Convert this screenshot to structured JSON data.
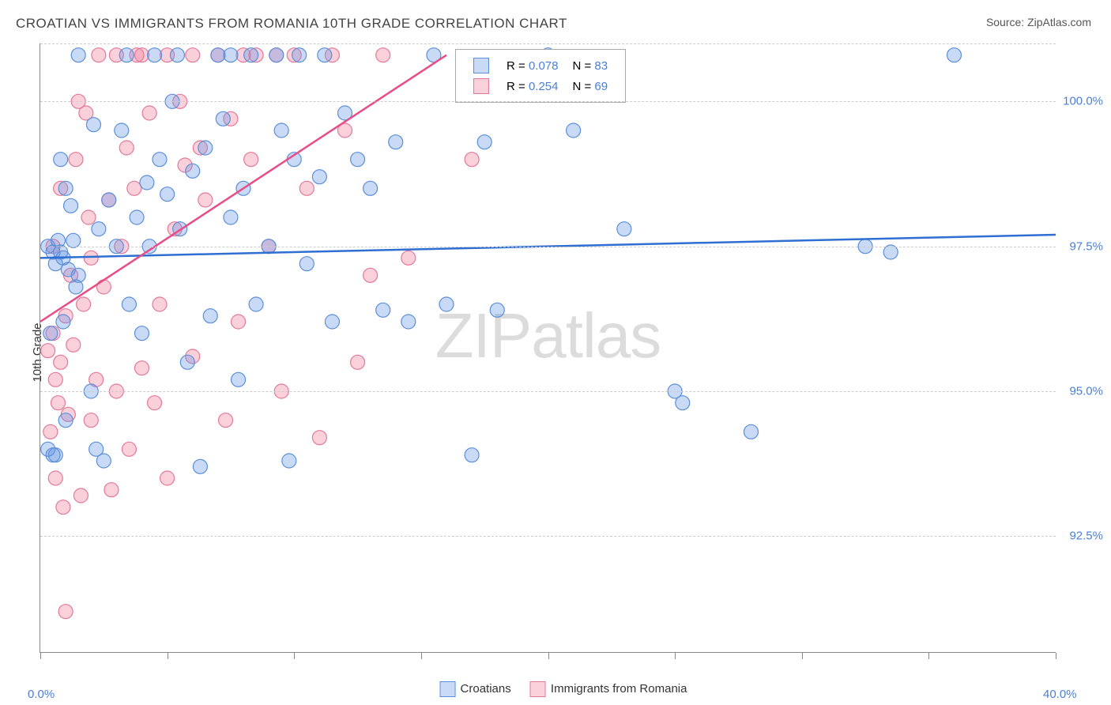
{
  "title": "CROATIAN VS IMMIGRANTS FROM ROMANIA 10TH GRADE CORRELATION CHART",
  "source": "Source: ZipAtlas.com",
  "ylabel": "10th Grade",
  "watermark_a": "ZIP",
  "watermark_b": "atlas",
  "chart": {
    "type": "scatter",
    "xlim": [
      0,
      40
    ],
    "ylim": [
      90.5,
      101
    ],
    "x_ticks_marks": [
      0,
      5,
      10,
      15,
      20,
      25,
      30,
      35,
      40
    ],
    "x_ticks_labels": [
      {
        "v": 0,
        "label": "0.0%"
      },
      {
        "v": 40,
        "label": "40.0%"
      }
    ],
    "y_ticks": [
      {
        "v": 92.5,
        "label": "92.5%"
      },
      {
        "v": 95.0,
        "label": "95.0%"
      },
      {
        "v": 97.5,
        "label": "97.5%"
      },
      {
        "v": 100.0,
        "label": "100.0%"
      }
    ],
    "grid_y": [
      92.5,
      95.0,
      97.5,
      100.0,
      101
    ],
    "grid_color": "#d5d5d5",
    "background": "#ffffff",
    "marker_radius": 9,
    "marker_stroke_width": 1.2,
    "trend_line_width": 2.5,
    "series": [
      {
        "name": "Croatians",
        "fill": "rgba(100,150,230,0.35)",
        "stroke": "#5b8fd8",
        "line_color": "#2e6fd1",
        "R": "0.078",
        "N": "83",
        "trend": {
          "x1": 0,
          "y1": 97.3,
          "x2": 40,
          "y2": 97.7
        },
        "points": [
          [
            0.3,
            97.5
          ],
          [
            0.4,
            96.0
          ],
          [
            0.5,
            97.4
          ],
          [
            0.6,
            93.9
          ],
          [
            0.6,
            97.2
          ],
          [
            0.7,
            97.6
          ],
          [
            0.8,
            97.4
          ],
          [
            0.8,
            99.0
          ],
          [
            0.9,
            96.2
          ],
          [
            0.9,
            97.3
          ],
          [
            1.0,
            98.5
          ],
          [
            1.0,
            94.5
          ],
          [
            1.1,
            97.1
          ],
          [
            1.2,
            98.2
          ],
          [
            1.3,
            97.6
          ],
          [
            1.4,
            96.8
          ],
          [
            1.5,
            97.0
          ],
          [
            1.5,
            100.8
          ],
          [
            2.0,
            95.0
          ],
          [
            2.1,
            99.6
          ],
          [
            2.2,
            94.0
          ],
          [
            2.3,
            97.8
          ],
          [
            2.5,
            93.8
          ],
          [
            2.7,
            98.3
          ],
          [
            3.0,
            97.5
          ],
          [
            3.2,
            99.5
          ],
          [
            3.4,
            100.8
          ],
          [
            3.5,
            96.5
          ],
          [
            3.8,
            98.0
          ],
          [
            4.0,
            96.0
          ],
          [
            4.2,
            98.6
          ],
          [
            4.3,
            97.5
          ],
          [
            4.5,
            100.8
          ],
          [
            4.7,
            99.0
          ],
          [
            5.0,
            98.4
          ],
          [
            5.2,
            100.0
          ],
          [
            5.4,
            100.8
          ],
          [
            5.5,
            97.8
          ],
          [
            5.8,
            95.5
          ],
          [
            6.0,
            98.8
          ],
          [
            6.3,
            93.7
          ],
          [
            6.5,
            99.2
          ],
          [
            6.7,
            96.3
          ],
          [
            7.0,
            100.8
          ],
          [
            7.2,
            99.7
          ],
          [
            7.5,
            98.0
          ],
          [
            7.5,
            100.8
          ],
          [
            7.8,
            95.2
          ],
          [
            8.0,
            98.5
          ],
          [
            8.3,
            100.8
          ],
          [
            8.5,
            96.5
          ],
          [
            9.0,
            97.5
          ],
          [
            9.3,
            100.8
          ],
          [
            9.5,
            99.5
          ],
          [
            9.8,
            93.8
          ],
          [
            10.0,
            99.0
          ],
          [
            10.2,
            100.8
          ],
          [
            10.5,
            97.2
          ],
          [
            11.0,
            98.7
          ],
          [
            11.2,
            100.8
          ],
          [
            11.5,
            96.2
          ],
          [
            12.0,
            99.8
          ],
          [
            12.5,
            99.0
          ],
          [
            13.0,
            98.5
          ],
          [
            13.5,
            96.4
          ],
          [
            14.0,
            99.3
          ],
          [
            14.5,
            96.2
          ],
          [
            15.5,
            100.8
          ],
          [
            16.0,
            96.5
          ],
          [
            17.0,
            93.9
          ],
          [
            17.5,
            99.3
          ],
          [
            18.0,
            96.4
          ],
          [
            20.0,
            100.8
          ],
          [
            21.0,
            99.5
          ],
          [
            23.0,
            97.8
          ],
          [
            25.0,
            95.0
          ],
          [
            25.3,
            94.8
          ],
          [
            28.0,
            94.3
          ],
          [
            32.5,
            97.5
          ],
          [
            33.5,
            97.4
          ],
          [
            36.0,
            100.8
          ],
          [
            0.3,
            94.0
          ],
          [
            0.5,
            93.9
          ]
        ]
      },
      {
        "name": "Immigrants from Romania",
        "fill": "rgba(240,120,150,0.35)",
        "stroke": "#e27a9a",
        "line_color": "#e84d88",
        "R": "0.254",
        "N": "69",
        "trend": {
          "x1": 0,
          "y1": 96.2,
          "x2": 16,
          "y2": 100.8
        },
        "points": [
          [
            0.3,
            95.7
          ],
          [
            0.4,
            94.3
          ],
          [
            0.5,
            96.0
          ],
          [
            0.5,
            97.5
          ],
          [
            0.6,
            93.5
          ],
          [
            0.6,
            95.2
          ],
          [
            0.7,
            94.8
          ],
          [
            0.8,
            95.5
          ],
          [
            0.8,
            98.5
          ],
          [
            0.9,
            93.0
          ],
          [
            1.0,
            96.3
          ],
          [
            1.0,
            91.2
          ],
          [
            1.1,
            94.6
          ],
          [
            1.2,
            97.0
          ],
          [
            1.3,
            95.8
          ],
          [
            1.4,
            99.0
          ],
          [
            1.5,
            100.0
          ],
          [
            1.6,
            93.2
          ],
          [
            1.7,
            96.5
          ],
          [
            1.8,
            99.8
          ],
          [
            1.9,
            98.0
          ],
          [
            2.0,
            94.5
          ],
          [
            2.0,
            97.3
          ],
          [
            2.2,
            95.2
          ],
          [
            2.3,
            100.8
          ],
          [
            2.5,
            96.8
          ],
          [
            2.7,
            98.3
          ],
          [
            2.8,
            93.3
          ],
          [
            3.0,
            95.0
          ],
          [
            3.0,
            100.8
          ],
          [
            3.2,
            97.5
          ],
          [
            3.4,
            99.2
          ],
          [
            3.5,
            94.0
          ],
          [
            3.7,
            98.5
          ],
          [
            3.8,
            100.8
          ],
          [
            4.0,
            95.4
          ],
          [
            4.0,
            100.8
          ],
          [
            4.3,
            99.8
          ],
          [
            4.5,
            94.8
          ],
          [
            4.7,
            96.5
          ],
          [
            5.0,
            93.5
          ],
          [
            5.0,
            100.8
          ],
          [
            5.3,
            97.8
          ],
          [
            5.5,
            100.0
          ],
          [
            5.7,
            98.9
          ],
          [
            6.0,
            95.6
          ],
          [
            6.0,
            100.8
          ],
          [
            6.3,
            99.2
          ],
          [
            6.5,
            98.3
          ],
          [
            7.0,
            100.8
          ],
          [
            7.3,
            94.5
          ],
          [
            7.5,
            99.7
          ],
          [
            7.8,
            96.2
          ],
          [
            8.0,
            100.8
          ],
          [
            8.3,
            99.0
          ],
          [
            8.5,
            100.8
          ],
          [
            9.0,
            97.5
          ],
          [
            9.3,
            100.8
          ],
          [
            9.5,
            95.0
          ],
          [
            10.0,
            100.8
          ],
          [
            10.5,
            98.5
          ],
          [
            11.0,
            94.2
          ],
          [
            11.5,
            100.8
          ],
          [
            12.0,
            99.5
          ],
          [
            12.5,
            95.5
          ],
          [
            13.0,
            97.0
          ],
          [
            13.5,
            100.8
          ],
          [
            14.5,
            97.3
          ],
          [
            17.0,
            99.0
          ]
        ]
      }
    ]
  },
  "legend": {
    "r_label": "R =",
    "n_label": "N ="
  },
  "bottom_legend": {
    "items": [
      "Croatians",
      "Immigrants from Romania"
    ]
  }
}
